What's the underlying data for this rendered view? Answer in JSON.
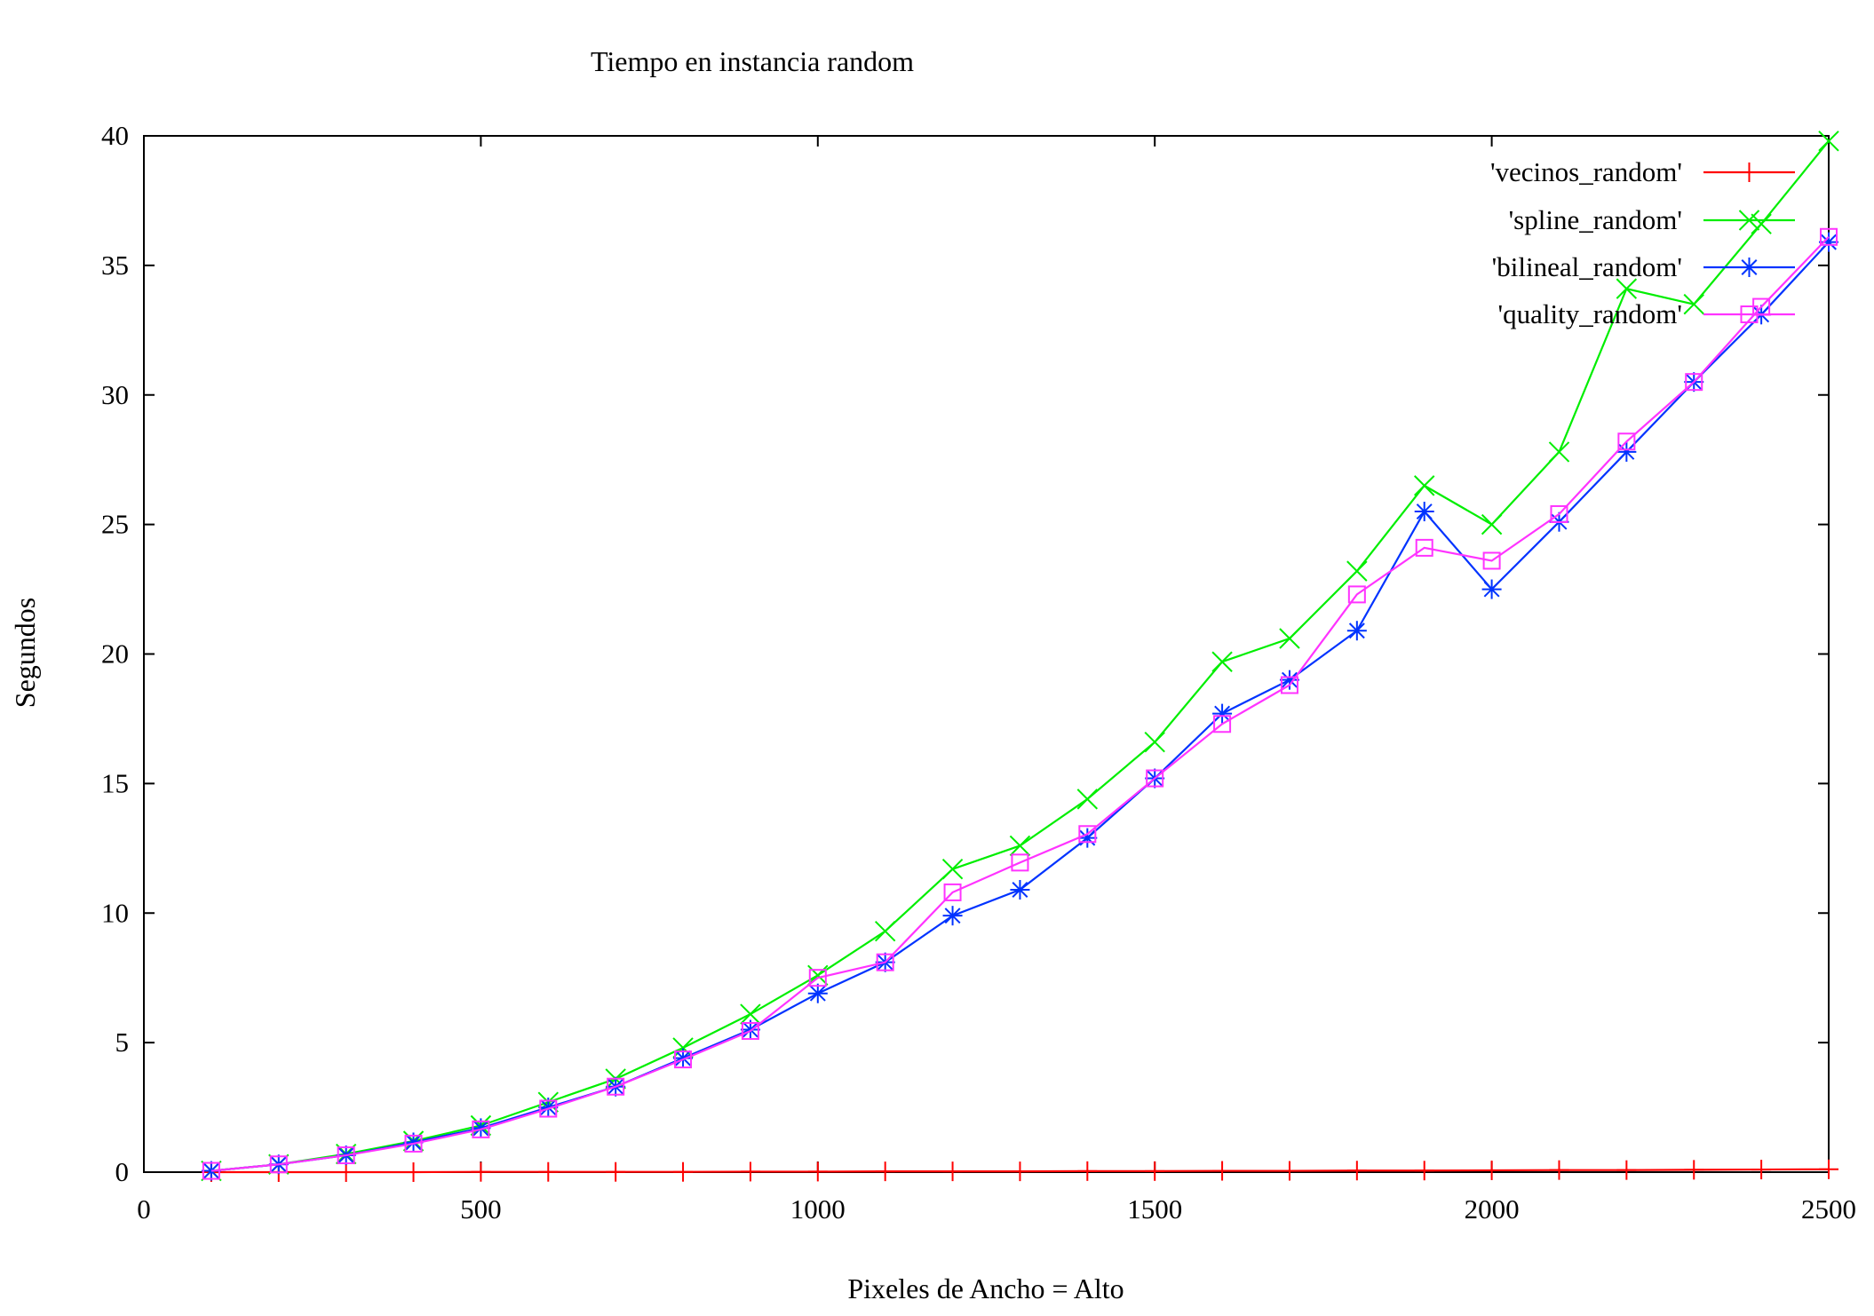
{
  "chart_data": {
    "type": "line",
    "title": "Tiempo en instancia random",
    "xlabel": "Pixeles de Ancho = Alto",
    "ylabel": "Segundos",
    "xlim": [
      0,
      2500
    ],
    "ylim": [
      0,
      40
    ],
    "x_ticks": [
      0,
      500,
      1000,
      1500,
      2000,
      2500
    ],
    "y_ticks": [
      0,
      5,
      10,
      15,
      20,
      25,
      30,
      35,
      40
    ],
    "grid": false,
    "legend_position": "top-right",
    "x": [
      100,
      200,
      300,
      400,
      500,
      600,
      700,
      800,
      900,
      1000,
      1100,
      1200,
      1300,
      1400,
      1500,
      1600,
      1700,
      1800,
      1900,
      2000,
      2100,
      2200,
      2300,
      2400,
      2500
    ],
    "series": [
      {
        "name": "'vecinos_random'",
        "color": "#ff0000",
        "marker": "plus",
        "values": [
          0.0,
          0.0,
          0.0,
          0.0,
          0.01,
          0.01,
          0.01,
          0.01,
          0.02,
          0.02,
          0.03,
          0.03,
          0.03,
          0.04,
          0.04,
          0.05,
          0.05,
          0.06,
          0.06,
          0.07,
          0.08,
          0.08,
          0.09,
          0.1,
          0.11
        ]
      },
      {
        "name": "'spline_random'",
        "color": "#00ee00",
        "marker": "x",
        "values": [
          0.05,
          0.3,
          0.7,
          1.2,
          1.8,
          2.7,
          3.6,
          4.8,
          6.1,
          7.6,
          9.3,
          11.7,
          12.6,
          14.4,
          16.6,
          19.7,
          20.6,
          23.2,
          26.5,
          25.0,
          27.8,
          34.1,
          33.5,
          36.6,
          39.8
        ]
      },
      {
        "name": "'bilineal_random'",
        "color": "#0033ff",
        "marker": "star",
        "values": [
          0.05,
          0.3,
          0.65,
          1.15,
          1.7,
          2.5,
          3.3,
          4.4,
          5.5,
          6.9,
          8.1,
          9.9,
          10.9,
          12.9,
          15.2,
          17.7,
          19.0,
          20.9,
          25.5,
          22.5,
          25.1,
          27.8,
          30.5,
          33.1,
          35.9
        ]
      },
      {
        "name": "'quality_random'",
        "color": "#ff33ff",
        "marker": "square",
        "values": [
          0.05,
          0.3,
          0.65,
          1.1,
          1.65,
          2.45,
          3.3,
          4.35,
          5.45,
          7.5,
          8.1,
          10.8,
          11.95,
          13.05,
          15.2,
          17.3,
          18.8,
          22.3,
          24.1,
          23.6,
          25.4,
          28.2,
          30.5,
          33.4,
          36.1
        ]
      }
    ]
  }
}
